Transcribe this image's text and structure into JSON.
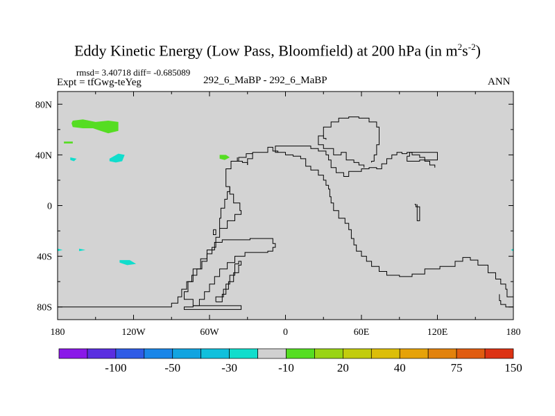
{
  "title": {
    "main": "Eddy Kinetic Energy (Low Pass, Bloomfield) at 200 hPa (in m",
    "exp1": "2",
    "mid": "s",
    "exp2": "-2",
    "end": ")"
  },
  "stats": "rmsd= 3.40718  diff= -0.685089",
  "expt": "Expt = tfGwg-teYeg",
  "center_label": "292_6_MaBP - 292_6_MaBP",
  "period": "ANN",
  "colors": {
    "land_fill": "#d3d3d3",
    "coast": "#000000",
    "green": "#55dd22",
    "cyan": "#11ddcc"
  },
  "chart_data": {
    "type": "contour-map",
    "xlim": [
      -180,
      180
    ],
    "ylim": [
      -90,
      90
    ],
    "x_ticks": [
      {
        "value": -180,
        "label": "180"
      },
      {
        "value": -120,
        "label": "120W"
      },
      {
        "value": -60,
        "label": "60W"
      },
      {
        "value": 0,
        "label": "0"
      },
      {
        "value": 60,
        "label": "60E"
      },
      {
        "value": 120,
        "label": "120E"
      },
      {
        "value": 180,
        "label": "180"
      }
    ],
    "y_ticks": [
      {
        "value": 80,
        "label": "80N"
      },
      {
        "value": 40,
        "label": "40N"
      },
      {
        "value": 0,
        "label": "0"
      },
      {
        "value": -40,
        "label": "40S"
      },
      {
        "value": -80,
        "label": "80S"
      }
    ],
    "colorbar": {
      "colors": [
        "#8a18e8",
        "#5a2ee0",
        "#2f5ce6",
        "#1a86e8",
        "#12a4e0",
        "#10c0dc",
        "#11ddcc",
        "#d0d0d0",
        "#55dd22",
        "#99d415",
        "#c2cc0e",
        "#dcbe08",
        "#e6a208",
        "#e2820c",
        "#e05c10",
        "#dc3214"
      ],
      "labels": [
        "-100",
        "-50",
        "-30",
        "-10",
        "20",
        "40",
        "75",
        "150"
      ]
    },
    "blobs": [
      {
        "name": "green-patch-npacific",
        "color_key": "green",
        "points": [
          [
            -168,
            67
          ],
          [
            -160,
            68
          ],
          [
            -150,
            66
          ],
          [
            -140,
            67
          ],
          [
            -132,
            66
          ],
          [
            -132,
            59
          ],
          [
            -140,
            57
          ],
          [
            -146,
            59
          ],
          [
            -152,
            61
          ],
          [
            -160,
            61
          ],
          [
            -168,
            62
          ],
          [
            -169,
            65
          ]
        ]
      },
      {
        "name": "green-dot-npacific",
        "color_key": "green",
        "points": [
          [
            -175,
            50.5
          ],
          [
            -168,
            50.5
          ],
          [
            -168,
            49
          ],
          [
            -175,
            49
          ]
        ]
      },
      {
        "name": "green-patch-natlantic",
        "color_key": "green",
        "points": [
          [
            -52,
            40
          ],
          [
            -47,
            40
          ],
          [
            -44,
            38
          ],
          [
            -48,
            36
          ],
          [
            -52,
            37
          ]
        ]
      },
      {
        "name": "cyan-patch-nepacific",
        "color_key": "cyan",
        "points": [
          [
            -139,
            37
          ],
          [
            -132,
            41
          ],
          [
            -127,
            40
          ],
          [
            -129,
            35
          ],
          [
            -134,
            34
          ],
          [
            -139,
            35
          ]
        ]
      },
      {
        "name": "cyan-dot-nwpacific",
        "color_key": "cyan",
        "points": [
          [
            -170,
            38
          ],
          [
            -165,
            37
          ],
          [
            -167,
            35
          ],
          [
            -170,
            36
          ]
        ]
      },
      {
        "name": "cyan-patch-spacific",
        "color_key": "cyan",
        "points": [
          [
            -131,
            -43
          ],
          [
            -123,
            -43
          ],
          [
            -118,
            -46
          ],
          [
            -125,
            -47
          ],
          [
            -131,
            -45
          ]
        ]
      },
      {
        "name": "cyan-dot-spacific",
        "color_key": "cyan",
        "points": [
          [
            -163,
            -34
          ],
          [
            -158,
            -35
          ],
          [
            -163,
            -36
          ]
        ]
      },
      {
        "name": "cyan-edge-west",
        "color_key": "cyan",
        "points": [
          [
            -180,
            -34
          ],
          [
            -176,
            -35
          ],
          [
            -180,
            -36
          ]
        ]
      },
      {
        "name": "cyan-edge-east",
        "color_key": "cyan",
        "points": [
          [
            180,
            -34
          ],
          [
            178,
            -35
          ],
          [
            180,
            -36
          ]
        ]
      }
    ],
    "coastlines": [
      {
        "name": "americas-western-coast",
        "points": [
          [
            -180,
            -80
          ],
          [
            -95,
            -80
          ],
          [
            -90,
            -77
          ],
          [
            -85,
            -72
          ],
          [
            -82,
            -66
          ],
          [
            -78,
            -60
          ],
          [
            -74,
            -55
          ],
          [
            -70,
            -50
          ],
          [
            -66,
            -44
          ],
          [
            -62,
            -38
          ],
          [
            -58,
            -33
          ],
          [
            -55,
            -25
          ],
          [
            -52,
            -18
          ],
          [
            -46,
            -12
          ],
          [
            -40,
            -7
          ],
          [
            -35,
            -4
          ],
          [
            -36,
            2
          ],
          [
            -41,
            9
          ],
          [
            -44,
            15
          ],
          [
            -47,
            22
          ],
          [
            -47,
            29
          ],
          [
            -43,
            35
          ],
          [
            -37,
            38
          ],
          [
            -31,
            41
          ],
          [
            -26,
            42
          ]
        ]
      },
      {
        "name": "isthmus-west-spur",
        "points": [
          [
            -52,
            -18
          ],
          [
            -52,
            -10
          ],
          [
            -51,
            -2
          ],
          [
            -48,
            5
          ],
          [
            -46,
            11
          ],
          [
            -44,
            15
          ]
        ]
      },
      {
        "name": "atlantic-inner-loop-north",
        "points": [
          [
            -38,
            38
          ],
          [
            -38,
            35
          ],
          [
            -34,
            34
          ],
          [
            -30,
            32
          ]
        ]
      },
      {
        "name": "atlantic-inner-loop-south",
        "points": [
          [
            -30,
            32
          ],
          [
            -30,
            37
          ],
          [
            -26,
            37
          ],
          [
            -26,
            42
          ]
        ]
      },
      {
        "name": "south-america-loop",
        "points": [
          [
            -73,
            -79
          ],
          [
            -68,
            -74
          ],
          [
            -64,
            -68
          ],
          [
            -60,
            -62
          ],
          [
            -56,
            -56
          ],
          [
            -52,
            -50
          ],
          [
            -46,
            -45
          ],
          [
            -40,
            -40
          ],
          [
            -32,
            -37
          ],
          [
            -18,
            -37
          ],
          [
            -14,
            -36
          ],
          [
            -10,
            -33
          ],
          [
            -8,
            -30
          ],
          [
            -10,
            -26
          ],
          [
            -16,
            -26
          ],
          [
            -28,
            -27
          ],
          [
            -42,
            -27
          ],
          [
            -50,
            -29
          ],
          [
            -56,
            -35
          ],
          [
            -62,
            -42
          ],
          [
            -67,
            -50
          ],
          [
            -73,
            -60
          ],
          [
            -77,
            -68
          ],
          [
            -80,
            -74
          ],
          [
            -73,
            -79
          ]
        ]
      },
      {
        "name": "andes-finger",
        "points": [
          [
            -55,
            -76
          ],
          [
            -50,
            -70
          ],
          [
            -47,
            -62
          ],
          [
            -44,
            -55
          ],
          [
            -40,
            -46
          ],
          [
            -37,
            -44
          ],
          [
            -35,
            -47
          ],
          [
            -37,
            -53
          ],
          [
            -41,
            -60
          ],
          [
            -45,
            -66
          ],
          [
            -49,
            -72
          ],
          [
            -55,
            -76
          ]
        ]
      },
      {
        "name": "cape-tail",
        "points": [
          [
            -73,
            -79
          ],
          [
            -35,
            -79
          ],
          [
            -35,
            -82
          ],
          [
            -73,
            -82
          ],
          [
            -80,
            -80
          ],
          [
            -73,
            -79
          ]
        ]
      },
      {
        "name": "west-wedge",
        "points": [
          [
            -57,
            -19
          ],
          [
            -55,
            -19
          ],
          [
            -55,
            -23
          ],
          [
            -57,
            -23
          ],
          [
            -57,
            -19
          ]
        ]
      },
      {
        "name": "eurasia-boundary",
        "points": [
          [
            -26,
            42
          ],
          [
            -14,
            46
          ],
          [
            -10,
            43
          ],
          [
            -6,
            42
          ],
          [
            0,
            40
          ],
          [
            6,
            39
          ],
          [
            12,
            37
          ],
          [
            16,
            31
          ],
          [
            20,
            28
          ],
          [
            26,
            24
          ],
          [
            30,
            20
          ],
          [
            32,
            16
          ],
          [
            34,
            13
          ],
          [
            35,
            7
          ],
          [
            36,
            2
          ],
          [
            38,
            -4
          ],
          [
            42,
            -10
          ],
          [
            47,
            -14
          ],
          [
            50,
            -19
          ],
          [
            52,
            -26
          ],
          [
            54,
            -31
          ],
          [
            56,
            -36
          ],
          [
            60,
            -40
          ],
          [
            64,
            -44
          ],
          [
            68,
            -48
          ],
          [
            74,
            -52
          ],
          [
            80,
            -55
          ],
          [
            90,
            -56
          ],
          [
            100,
            -54
          ],
          [
            110,
            -50
          ],
          [
            122,
            -48
          ],
          [
            134,
            -44
          ],
          [
            140,
            -41
          ],
          [
            146,
            -43
          ],
          [
            152,
            -47
          ],
          [
            160,
            -53
          ],
          [
            166,
            -58
          ],
          [
            170,
            -62
          ],
          [
            174,
            -66
          ],
          [
            175,
            -72
          ],
          [
            180,
            -78
          ]
        ]
      },
      {
        "name": "antarctic-east-tail",
        "points": [
          [
            180,
            -80
          ],
          [
            174,
            -78
          ],
          [
            170,
            -75
          ],
          [
            169,
            -70
          ]
        ]
      },
      {
        "name": "asia-north-inner",
        "points": [
          [
            -6,
            42
          ],
          [
            -8,
            47
          ],
          [
            2,
            47
          ],
          [
            12,
            47
          ],
          [
            20,
            45
          ],
          [
            26,
            43
          ],
          [
            32,
            40
          ],
          [
            34,
            36
          ],
          [
            36,
            30
          ],
          [
            40,
            26
          ],
          [
            46,
            23
          ],
          [
            50,
            27
          ],
          [
            56,
            27
          ],
          [
            60,
            29
          ],
          [
            66,
            30
          ],
          [
            72,
            29
          ],
          [
            76,
            33
          ],
          [
            80,
            37
          ],
          [
            84,
            40
          ],
          [
            88,
            42
          ],
          [
            92,
            41
          ],
          [
            96,
            42
          ],
          [
            100,
            40
          ],
          [
            106,
            38
          ],
          [
            110,
            35
          ],
          [
            114,
            32
          ],
          [
            118,
            30
          ]
        ]
      },
      {
        "name": "arctic-dome",
        "points": [
          [
            40,
            40
          ],
          [
            38,
            45
          ],
          [
            30,
            48
          ],
          [
            26,
            55
          ],
          [
            30,
            62
          ],
          [
            36,
            66
          ],
          [
            42,
            69
          ],
          [
            50,
            70
          ],
          [
            58,
            69
          ],
          [
            66,
            66
          ],
          [
            72,
            62
          ],
          [
            74,
            55
          ],
          [
            74,
            48
          ],
          [
            72,
            40
          ],
          [
            70,
            35
          ],
          [
            68,
            34
          ]
        ]
      },
      {
        "name": "arctic-dome-inner",
        "points": [
          [
            26,
            55
          ],
          [
            30,
            53
          ],
          [
            32,
            52
          ]
        ]
      },
      {
        "name": "east-rect-island",
        "points": [
          [
            96,
            39
          ],
          [
            98,
            42
          ],
          [
            110,
            42
          ],
          [
            120,
            41
          ],
          [
            120,
            36
          ],
          [
            106,
            35
          ],
          [
            96,
            35
          ],
          [
            96,
            39
          ]
        ]
      },
      {
        "name": "small-east-sliver",
        "points": [
          [
            102,
            1
          ],
          [
            103,
            -1
          ],
          [
            106,
            -1
          ],
          [
            106,
            -12
          ],
          [
            104,
            -12
          ],
          [
            104,
            1
          ]
        ]
      },
      {
        "name": "north-right-arm",
        "points": [
          [
            40,
            40
          ],
          [
            44,
            42
          ],
          [
            48,
            36
          ],
          [
            54,
            34
          ],
          [
            58,
            32
          ],
          [
            62,
            30
          ]
        ]
      }
    ]
  }
}
